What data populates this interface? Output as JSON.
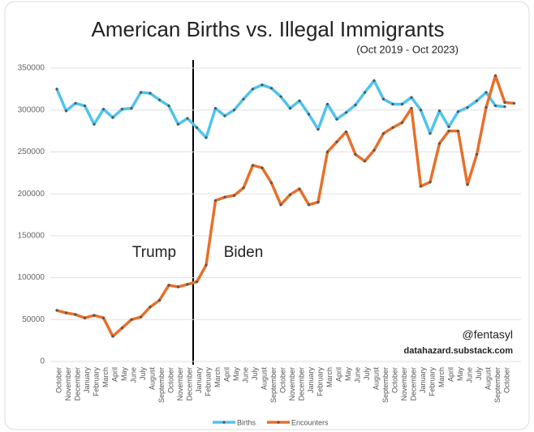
{
  "chart_data": {
    "type": "line",
    "title": "American Births vs. Illegal Immigrants",
    "subtitle": "(Oct 2019 - Oct 2023)",
    "categories": [
      "October",
      "November",
      "December",
      "January",
      "February",
      "March",
      "April",
      "May",
      "June",
      "July",
      "August",
      "September",
      "October",
      "November",
      "December",
      "January",
      "February",
      "March",
      "April",
      "May",
      "June",
      "July",
      "August",
      "September",
      "October",
      "November",
      "December",
      "January",
      "February",
      "March",
      "April",
      "May",
      "June",
      "July",
      "August",
      "September",
      "October",
      "November",
      "December",
      "January",
      "February",
      "March",
      "April",
      "May",
      "June",
      "July",
      "August",
      "September",
      "October",
      null
    ],
    "series": [
      {
        "name": "Births",
        "color": "#4fc3f0",
        "values": [
          325000,
          299000,
          308000,
          305000,
          283000,
          301000,
          291000,
          301000,
          302000,
          321000,
          320000,
          312000,
          305000,
          283000,
          290000,
          279000,
          267000,
          302000,
          293000,
          300000,
          313000,
          325000,
          330000,
          326000,
          316000,
          302000,
          311000,
          295000,
          277000,
          307000,
          289000,
          297000,
          306000,
          321000,
          335000,
          313000,
          307000,
          307000,
          315000,
          300000,
          272000,
          299000,
          280000,
          298000,
          303000,
          311000,
          321000,
          305000,
          304000,
          null
        ]
      },
      {
        "name": "Encounters",
        "color": "#e8702a",
        "values": [
          61000,
          58000,
          56000,
          52000,
          55000,
          52000,
          30000,
          40000,
          50000,
          53000,
          65000,
          73000,
          91000,
          89000,
          92000,
          95000,
          115000,
          192000,
          196000,
          198000,
          207000,
          234000,
          231000,
          213000,
          187000,
          199000,
          206000,
          187000,
          190000,
          250000,
          262000,
          274000,
          247000,
          239000,
          252000,
          272000,
          279000,
          285000,
          302000,
          209000,
          214000,
          260000,
          275000,
          275000,
          211000,
          247000,
          303000,
          341000,
          309000,
          308000
        ]
      }
    ],
    "ylim": [
      0,
      350000
    ],
    "yticks": [
      0,
      50000,
      100000,
      150000,
      200000,
      250000,
      300000,
      350000
    ],
    "grid": true,
    "legend": "bottom",
    "annotations": [
      "Trump",
      "Biden",
      "@fentasyl",
      "datahazard.substack.com"
    ]
  }
}
